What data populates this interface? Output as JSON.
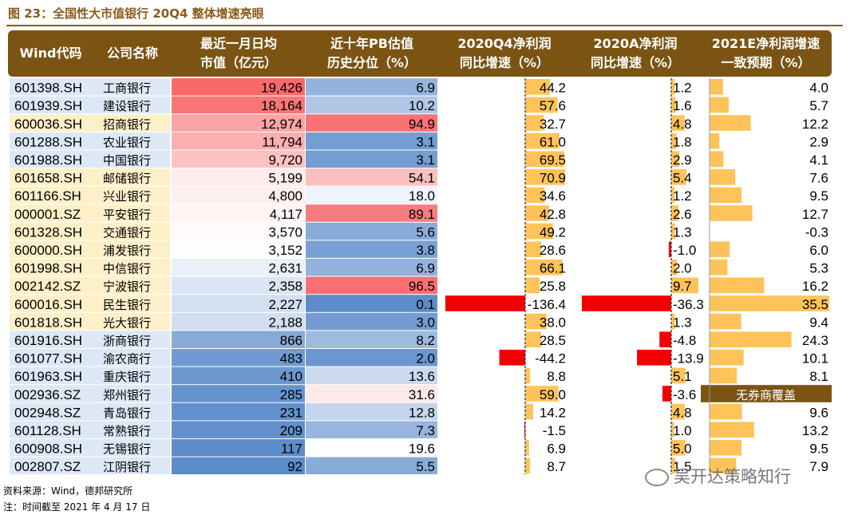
{
  "figure": {
    "title": "图 23：全国性大市值银行 20Q4 整体增速亮眼",
    "source_note": "资料来源：Wind，德邦研究所",
    "date_note": "注：时间截至 2021 年 4 月 17 日",
    "watermark": "吴开达策略知行"
  },
  "colors": {
    "header_bg": "#7B5414",
    "code_cell_bg": "#FDF0C8",
    "code_cell_bg_alt": "#DCE8F5",
    "bar_orange": "#FFC35A",
    "bar_red": "#F50000",
    "no_coverage_bg": "#7B5414",
    "scale_red": "#F8696B",
    "scale_white": "#FFFFFF",
    "scale_blue": "#5B8BC9"
  },
  "chart_data": {
    "type": "table",
    "columns": [
      "Wind代码",
      "公司名称",
      "最近一月日均\n市值（亿元）",
      "近十年PB估值\n历史分位（%）",
      "2020Q4净利润\n同比增速（%）",
      "2020A净利润\n同比增速（%）",
      "2021E净利润增速\n一致预期（%）"
    ],
    "no_coverage_label": "无券商覆盖",
    "rows": [
      {
        "code": "601398.SH",
        "name": "工商银行",
        "mktcap": 19426,
        "pb_pct": 6.9,
        "q4_yoy": 44.2,
        "a_yoy": 1.2,
        "e2021": 4.0
      },
      {
        "code": "601939.SH",
        "name": "建设银行",
        "mktcap": 18164,
        "pb_pct": 10.2,
        "q4_yoy": 57.6,
        "a_yoy": 1.6,
        "e2021": 5.7
      },
      {
        "code": "600036.SH",
        "name": "招商银行",
        "mktcap": 12974,
        "pb_pct": 94.9,
        "q4_yoy": 32.7,
        "a_yoy": 4.8,
        "e2021": 12.2
      },
      {
        "code": "601288.SH",
        "name": "农业银行",
        "mktcap": 11794,
        "pb_pct": 3.1,
        "q4_yoy": 61.0,
        "a_yoy": 1.8,
        "e2021": 2.9
      },
      {
        "code": "601988.SH",
        "name": "中国银行",
        "mktcap": 9720,
        "pb_pct": 3.1,
        "q4_yoy": 69.5,
        "a_yoy": 2.9,
        "e2021": 4.1
      },
      {
        "code": "601658.SH",
        "name": "邮储银行",
        "mktcap": 5199,
        "pb_pct": 54.1,
        "q4_yoy": 70.9,
        "a_yoy": 5.4,
        "e2021": 7.6
      },
      {
        "code": "601166.SH",
        "name": "兴业银行",
        "mktcap": 4800,
        "pb_pct": 18.0,
        "q4_yoy": 34.6,
        "a_yoy": 1.2,
        "e2021": 9.5
      },
      {
        "code": "000001.SZ",
        "name": "平安银行",
        "mktcap": 4117,
        "pb_pct": 89.1,
        "q4_yoy": 42.8,
        "a_yoy": 2.6,
        "e2021": 12.7
      },
      {
        "code": "601328.SH",
        "name": "交通银行",
        "mktcap": 3570,
        "pb_pct": 5.6,
        "q4_yoy": 49.2,
        "a_yoy": 1.3,
        "e2021": -0.3
      },
      {
        "code": "600000.SH",
        "name": "浦发银行",
        "mktcap": 3152,
        "pb_pct": 3.8,
        "q4_yoy": 28.6,
        "a_yoy": -1.0,
        "e2021": 6.0
      },
      {
        "code": "601998.SH",
        "name": "中信银行",
        "mktcap": 2631,
        "pb_pct": 6.9,
        "q4_yoy": 66.1,
        "a_yoy": 2.0,
        "e2021": 5.3
      },
      {
        "code": "002142.SZ",
        "name": "宁波银行",
        "mktcap": 2358,
        "pb_pct": 96.5,
        "q4_yoy": 25.8,
        "a_yoy": 9.7,
        "e2021": 16.2
      },
      {
        "code": "600016.SH",
        "name": "民生银行",
        "mktcap": 2227,
        "pb_pct": 0.1,
        "q4_yoy": -136.4,
        "a_yoy": -36.3,
        "e2021": 35.5
      },
      {
        "code": "601818.SH",
        "name": "光大银行",
        "mktcap": 2188,
        "pb_pct": 3.0,
        "q4_yoy": 38.0,
        "a_yoy": 1.3,
        "e2021": 9.4
      },
      {
        "code": "601916.SH",
        "name": "浙商银行",
        "mktcap": 866,
        "pb_pct": 8.2,
        "q4_yoy": 28.5,
        "a_yoy": -4.8,
        "e2021": 24.3
      },
      {
        "code": "601077.SH",
        "name": "渝农商行",
        "mktcap": 483,
        "pb_pct": 2.0,
        "q4_yoy": -44.2,
        "a_yoy": -13.9,
        "e2021": 10.1
      },
      {
        "code": "601963.SH",
        "name": "重庆银行",
        "mktcap": 410,
        "pb_pct": 13.6,
        "q4_yoy": 8.8,
        "a_yoy": 5.1,
        "e2021": 8.1
      },
      {
        "code": "002936.SZ",
        "name": "郑州银行",
        "mktcap": 285,
        "pb_pct": 31.6,
        "q4_yoy": 59.0,
        "a_yoy": -3.6,
        "e2021": null
      },
      {
        "code": "002948.SZ",
        "name": "青岛银行",
        "mktcap": 231,
        "pb_pct": 12.8,
        "q4_yoy": 14.2,
        "a_yoy": 4.8,
        "e2021": 9.6
      },
      {
        "code": "601128.SH",
        "name": "常熟银行",
        "mktcap": 209,
        "pb_pct": 7.3,
        "q4_yoy": -1.5,
        "a_yoy": 1.0,
        "e2021": 13.2
      },
      {
        "code": "600908.SH",
        "name": "无锡银行",
        "mktcap": 117,
        "pb_pct": 19.6,
        "q4_yoy": 6.9,
        "a_yoy": 5.0,
        "e2021": 9.5
      },
      {
        "code": "002807.SZ",
        "name": "江阴银行",
        "mktcap": 92,
        "pb_pct": 5.5,
        "q4_yoy": 8.7,
        "a_yoy": 1.5,
        "e2021": 7.9
      }
    ]
  }
}
